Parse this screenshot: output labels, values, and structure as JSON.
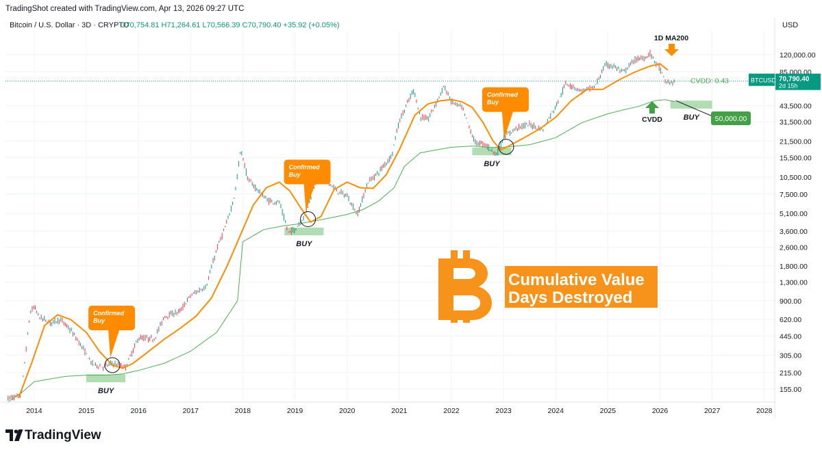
{
  "header": {
    "created": "TradingShot created with TradingView.com, Apr 13, 2026 09:27 UTC",
    "symbol": "Bitcoin / U.S. Dollar · 3D · CRYPTO",
    "ohlc": "O70,754.81  H71,264.61  L70,566.39  C70,790.40  +35.92 (+0.05%)",
    "currency": "USD"
  },
  "footer": {
    "brand": "TradingView"
  },
  "colors": {
    "up": "#089981",
    "down": "#f23645",
    "ma200": "#ff8c00",
    "cvdd": "#4caf50",
    "accent": "#f7931a",
    "buy_zone": "#a5d6a7"
  },
  "chart_data": {
    "type": "line",
    "yscale": "log",
    "ylim": [
      120,
      190000
    ],
    "xlim": [
      2013.45,
      2028.2
    ],
    "y_ticks": [
      155,
      215,
      305,
      445,
      620,
      900,
      1300,
      1800,
      2600,
      3600,
      5100,
      7500,
      10500,
      15500,
      21500,
      31500,
      43500,
      85000,
      120000
    ],
    "y_tick_labels": [
      "155.00",
      "215.00",
      "305.00",
      "445.00",
      "620.00",
      "900.00",
      "1,300.00",
      "1,800.00",
      "2,600.00",
      "3,600.00",
      "5,100.00",
      "7,500.00",
      "10,500.00",
      "15,500.00",
      "21,500.00",
      "31,500.00",
      "43,500.00",
      "85,000.00",
      "120,000.00"
    ],
    "x_ticks": [
      2014,
      2015,
      2016,
      2017,
      2018,
      2019,
      2020,
      2021,
      2022,
      2023,
      2024,
      2025,
      2026,
      2027,
      2028
    ],
    "x_tick_labels": [
      "2014",
      "2015",
      "2016",
      "2017",
      "2018",
      "2019",
      "2020",
      "2021",
      "2022",
      "2023",
      "2024",
      "2025",
      "2026",
      "2027",
      "2028"
    ],
    "series": [
      {
        "key": "price",
        "x": [
          2013.5,
          2013.75,
          2013.92,
          2014.0,
          2014.1,
          2014.3,
          2014.5,
          2014.7,
          2014.9,
          2015.1,
          2015.3,
          2015.5,
          2015.75,
          2016.0,
          2016.3,
          2016.5,
          2016.8,
          2017.0,
          2017.3,
          2017.5,
          2017.7,
          2017.85,
          2017.96,
          2018.1,
          2018.3,
          2018.5,
          2018.7,
          2018.87,
          2019.0,
          2019.2,
          2019.45,
          2019.6,
          2019.8,
          2020.0,
          2020.2,
          2020.4,
          2020.6,
          2020.85,
          2021.0,
          2021.28,
          2021.4,
          2021.55,
          2021.7,
          2021.86,
          2022.0,
          2022.2,
          2022.45,
          2022.65,
          2022.87,
          2023.0,
          2023.25,
          2023.5,
          2023.75,
          2024.0,
          2024.2,
          2024.5,
          2024.75,
          2024.95,
          2025.1,
          2025.3,
          2025.5,
          2025.75,
          2025.8,
          2026.0,
          2026.1,
          2026.2,
          2026.28
        ],
        "y": [
          130,
          135,
          700,
          800,
          650,
          580,
          620,
          500,
          370,
          260,
          240,
          260,
          240,
          430,
          420,
          660,
          730,
          1000,
          1200,
          2500,
          4300,
          7500,
          18500,
          10000,
          8000,
          6500,
          6400,
          3500,
          3700,
          5000,
          11500,
          10000,
          8000,
          7200,
          5000,
          9500,
          11500,
          16000,
          32000,
          60000,
          35000,
          33000,
          45000,
          64000,
          47000,
          42000,
          21000,
          20000,
          16500,
          23000,
          28000,
          30000,
          27000,
          43000,
          68000,
          58000,
          63000,
          98000,
          96000,
          84000,
          107000,
          115000,
          124000,
          90000,
          70000,
          68000,
          70790
        ]
      },
      {
        "key": "ma200",
        "name": "1D MA200",
        "x": [
          2013.7,
          2013.95,
          2014.2,
          2014.45,
          2014.7,
          2015.0,
          2015.25,
          2015.5,
          2015.7,
          2015.9,
          2016.2,
          2016.5,
          2016.8,
          2017.1,
          2017.4,
          2017.7,
          2018.0,
          2018.2,
          2018.45,
          2018.7,
          2018.9,
          2019.1,
          2019.3,
          2019.5,
          2019.75,
          2020.0,
          2020.25,
          2020.5,
          2020.75,
          2021.0,
          2021.3,
          2021.55,
          2021.8,
          2022.0,
          2022.2,
          2022.4,
          2022.6,
          2022.8,
          2022.95,
          2023.1,
          2023.4,
          2023.7,
          2024.0,
          2024.3,
          2024.6,
          2024.9,
          2025.2,
          2025.5,
          2025.8,
          2026.0,
          2026.15
        ],
        "y": [
          130,
          260,
          550,
          680,
          620,
          480,
          330,
          250,
          235,
          260,
          330,
          420,
          520,
          660,
          950,
          1800,
          3700,
          6000,
          8500,
          9500,
          8000,
          5800,
          4300,
          4800,
          8200,
          9500,
          8500,
          8400,
          11000,
          18000,
          36000,
          45000,
          48000,
          49000,
          47000,
          42000,
          31500,
          21500,
          18000,
          19500,
          23000,
          27500,
          34500,
          48000,
          60000,
          60000,
          72000,
          84000,
          95000,
          100000,
          88000
        ]
      },
      {
        "key": "cvdd",
        "name": "CVDD",
        "x": [
          2013.5,
          2013.8,
          2014.0,
          2014.3,
          2014.6,
          2015.0,
          2015.4,
          2015.7,
          2016.0,
          2016.5,
          2017.0,
          2017.5,
          2017.9,
          2018.0,
          2018.4,
          2018.8,
          2019.0,
          2019.5,
          2020.0,
          2020.3,
          2020.6,
          2020.9,
          2021.1,
          2021.4,
          2021.7,
          2022.0,
          2022.4,
          2022.7,
          2023.0,
          2023.5,
          2024.0,
          2024.5,
          2025.0,
          2025.3,
          2025.6,
          2025.9,
          2026.1,
          2026.28
        ],
        "y": [
          120,
          150,
          180,
          190,
          200,
          205,
          205,
          210,
          225,
          260,
          330,
          480,
          900,
          2900,
          3700,
          4000,
          4100,
          4500,
          5000,
          5500,
          6500,
          8500,
          13000,
          17000,
          18000,
          19000,
          19500,
          19000,
          19000,
          20000,
          23000,
          31000,
          37000,
          40000,
          43000,
          48000,
          49000,
          47000
        ]
      }
    ],
    "buy_zones": [
      {
        "x": [
          2015.0,
          2015.75
        ],
        "y": [
          178,
          208
        ],
        "label": "BUY"
      },
      {
        "x": [
          2018.8,
          2019.55
        ],
        "y": [
          3300,
          3850
        ],
        "label": "BUY"
      },
      {
        "x": [
          2022.4,
          2023.15
        ],
        "y": [
          16200,
          18900
        ],
        "label": "BUY"
      },
      {
        "x": [
          2026.2,
          2027.0
        ],
        "y": [
          41000,
          48000
        ],
        "label": "BUY"
      }
    ],
    "signals": [
      {
        "x": 2015.5,
        "y": 250,
        "label": "Confirmed Buy"
      },
      {
        "x": 2019.25,
        "y": 4550,
        "label": "Confirmed Buy"
      },
      {
        "x": 2023.05,
        "y": 19200,
        "label": "Confirmed Buy"
      }
    ],
    "annotations": {
      "ma200_label": "1D MA200",
      "cvdd_label": "CVDD",
      "cvdd_value": "CVDD: 0.43",
      "title_line1": "Cumulative Value",
      "title_line2": "Days Destroyed",
      "target": "50,000.00",
      "last_symbol": "BTCUSD",
      "last_price": "70,790.40",
      "last_time": "2d 15h",
      "current_price": 70790.4,
      "target_price": 50000
    }
  }
}
